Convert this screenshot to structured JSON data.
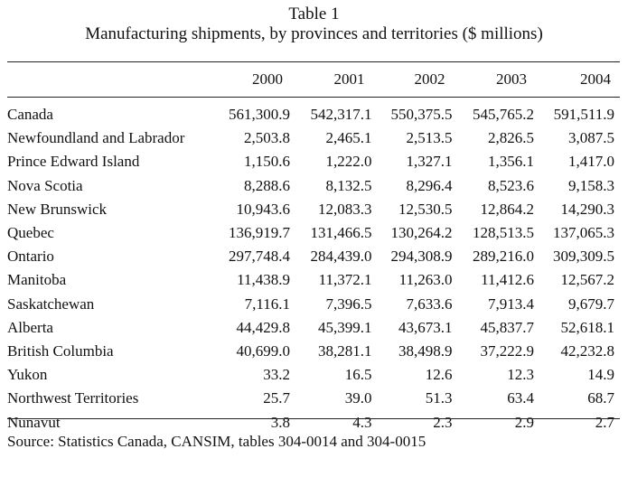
{
  "title": "Table 1",
  "subtitle": "Manufacturing shipments, by provinces and territories ($ millions)",
  "columns": [
    "",
    "2000",
    "2001",
    "2002",
    "2003",
    "2004"
  ],
  "rows": [
    {
      "name": "Canada",
      "values": [
        "561,300.9",
        "542,317.1",
        "550,375.5",
        "545,765.2",
        "591,511.9"
      ]
    },
    {
      "name": "Newfoundland and Labrador",
      "values": [
        "2,503.8",
        "2,465.1",
        "2,513.5",
        "2,826.5",
        "3,087.5"
      ]
    },
    {
      "name": "Prince Edward Island",
      "values": [
        "1,150.6",
        "1,222.0",
        "1,327.1",
        "1,356.1",
        "1,417.0"
      ]
    },
    {
      "name": "Nova Scotia",
      "values": [
        "8,288.6",
        "8,132.5",
        "8,296.4",
        "8,523.6",
        "9,158.3"
      ]
    },
    {
      "name": "New Brunswick",
      "values": [
        "10,943.6",
        "12,083.3",
        "12,530.5",
        "12,864.2",
        "14,290.3"
      ]
    },
    {
      "name": "Quebec",
      "values": [
        "136,919.7",
        "131,466.5",
        "130,264.2",
        "128,513.5",
        "137,065.3"
      ]
    },
    {
      "name": "Ontario",
      "values": [
        "297,748.4",
        "284,439.0",
        "294,308.9",
        "289,216.0",
        "309,309.5"
      ]
    },
    {
      "name": "Manitoba",
      "values": [
        "11,438.9",
        "11,372.1",
        "11,263.0",
        "11,412.6",
        "12,567.2"
      ]
    },
    {
      "name": "Saskatchewan",
      "values": [
        "7,116.1",
        "7,396.5",
        "7,633.6",
        "7,913.4",
        "9,679.7"
      ]
    },
    {
      "name": "Alberta",
      "values": [
        "44,429.8",
        "45,399.1",
        "43,673.1",
        "45,837.7",
        "52,618.1"
      ]
    },
    {
      "name": "British Columbia",
      "values": [
        "40,699.0",
        "38,281.1",
        "38,498.9",
        "37,222.9",
        "42,232.8"
      ]
    },
    {
      "name": "Yukon",
      "values": [
        "33.2",
        "16.5",
        "12.6",
        "12.3",
        "14.9"
      ]
    },
    {
      "name": "Northwest Territories",
      "values": [
        "25.7",
        "39.0",
        "51.3",
        "63.4",
        "68.7"
      ]
    },
    {
      "name": "Nunavut",
      "values": [
        "3.8",
        "4.3",
        "2.3",
        "2.9",
        "2.7"
      ]
    }
  ],
  "source": "Source: Statistics Canada, CANSIM, tables 304-0014 and 304-0015"
}
